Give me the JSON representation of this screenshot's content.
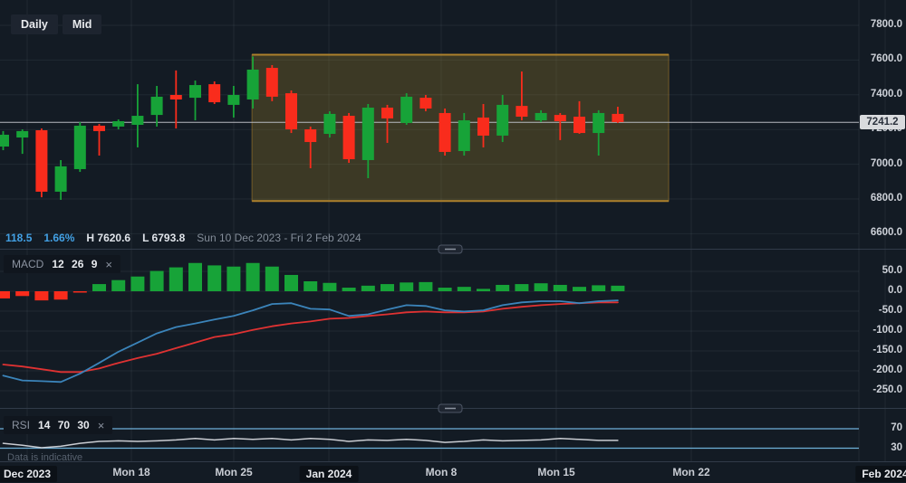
{
  "toolbar": {
    "daily": "Daily",
    "mid": "Mid"
  },
  "price_info": {
    "change": "118.5",
    "change_pct": "1.66%",
    "high": "H 7620.6",
    "low": "L 6793.8",
    "date_range": "Sun 10 Dec 2023 - Fri 2 Feb 2024"
  },
  "macd_box": {
    "title": "MACD",
    "params": "12 26 9",
    "close": "×"
  },
  "rsi_box": {
    "title": "RSI",
    "params": "14 70 30",
    "close": "×"
  },
  "note": "Data is indicative",
  "price_tag": "7241.2",
  "colors": {
    "background": "#131b24",
    "grid": "rgba(170,185,200,0.09)",
    "up": "#17a338",
    "down": "#f92c1c",
    "macd_line": "#3b84ba",
    "signal_line": "#df3232",
    "rsi_line": "#c9ccd2",
    "rsi_band": "#6fb1d9",
    "box_border": "#ad812c",
    "box_fill": "rgba(176,142,44,0.26)",
    "current_price_line": "#b7bac0",
    "accent_blue": "#42a0e4"
  },
  "x_axis": {
    "labels": [
      {
        "text": "Dec 2023",
        "month": true
      },
      {
        "text": "Mon 18",
        "month": false
      },
      {
        "text": "Mon 25",
        "month": false
      },
      {
        "text": "Jan 2024",
        "month": true
      },
      {
        "text": "Mon 8",
        "month": false
      },
      {
        "text": "Mon 15",
        "month": false
      },
      {
        "text": "Mon 22",
        "month": false
      },
      {
        "text": "Feb 2024",
        "month": true
      }
    ]
  },
  "chart_data": {
    "type": "candlestick",
    "title": "Daily price chart with MACD(12,26,9) and RSI(14,70,30)",
    "price_axis": {
      "ticks": [
        7800,
        7600,
        7400,
        7200,
        7000,
        6800,
        6600
      ],
      "current_price": 7241.2,
      "period_high": 7620.6,
      "period_low": 6793.8
    },
    "candles": [
      [
        7102,
        7191,
        7081,
        7170
      ],
      [
        7154,
        7201,
        7060,
        7191
      ],
      [
        7196,
        7206,
        6810,
        6842
      ],
      [
        6842,
        7024,
        6795,
        6988
      ],
      [
        6972,
        7243,
        6956,
        7222
      ],
      [
        7222,
        7232,
        7050,
        7191
      ],
      [
        7217,
        7258,
        7201,
        7248
      ],
      [
        7227,
        7461,
        7097,
        7279
      ],
      [
        7284,
        7451,
        7217,
        7389
      ],
      [
        7399,
        7540,
        7206,
        7373
      ],
      [
        7383,
        7482,
        7253,
        7456
      ],
      [
        7461,
        7477,
        7347,
        7357
      ],
      [
        7342,
        7451,
        7269,
        7399
      ],
      [
        7373,
        7620.6,
        7321,
        7545
      ],
      [
        7555,
        7571,
        7363,
        7389
      ],
      [
        7409,
        7425,
        7180,
        7201
      ],
      [
        7201,
        7217,
        6977,
        7128
      ],
      [
        7175,
        7305,
        7154,
        7290
      ],
      [
        7279,
        7295,
        7008,
        7029
      ],
      [
        7024,
        7347,
        6920,
        7326
      ],
      [
        7326,
        7342,
        7123,
        7264
      ],
      [
        7238,
        7409,
        7227,
        7389
      ],
      [
        7383,
        7399,
        7305,
        7321
      ],
      [
        7295,
        7321,
        7050,
        7071
      ],
      [
        7076,
        7295,
        7050,
        7253
      ],
      [
        7269,
        7347,
        7097,
        7165
      ],
      [
        7165,
        7399,
        7128,
        7342
      ],
      [
        7336,
        7534,
        7253,
        7274
      ],
      [
        7253,
        7311,
        7243,
        7295
      ],
      [
        7284,
        7295,
        7139,
        7248
      ],
      [
        7274,
        7363,
        7175,
        7180
      ],
      [
        7180,
        7311,
        7050,
        7295
      ],
      [
        7290,
        7331,
        7238,
        7243
      ]
    ],
    "range_box": {
      "price_high": 7620.6,
      "price_low": 6793.8,
      "start_index": 13,
      "end_index": 34.65
    },
    "indicators": {
      "macd": {
        "label": "MACD",
        "params": [
          12,
          26,
          9
        ],
        "axis_ticks": [
          50,
          0,
          -50,
          -100,
          -150,
          -200,
          -250
        ],
        "histogram": [
          -18,
          -12,
          -23,
          -21,
          -2,
          18,
          28,
          37,
          51,
          60,
          71,
          65,
          62,
          71,
          62,
          41,
          25,
          21,
          9,
          14,
          18,
          22,
          23,
          9,
          11,
          6,
          16,
          18,
          20,
          16,
          11,
          15,
          14
        ],
        "macd_line": [
          -212,
          -224,
          -226,
          -228,
          -207,
          -180,
          -152,
          -129,
          -106,
          -90,
          -81,
          -71,
          -62,
          -48,
          -32,
          -30,
          -44,
          -46,
          -62,
          -58,
          -46,
          -35,
          -37,
          -48,
          -51,
          -48,
          -35,
          -28,
          -25,
          -25,
          -30,
          -25,
          -23
        ],
        "signal_line": [
          -184,
          -189,
          -196,
          -203,
          -203,
          -194,
          -180,
          -168,
          -157,
          -143,
          -129,
          -115,
          -108,
          -97,
          -88,
          -81,
          -76,
          -69,
          -67,
          -62,
          -58,
          -53,
          -51,
          -53,
          -53,
          -51,
          -44,
          -39,
          -35,
          -32,
          -30,
          -28,
          -28
        ]
      },
      "rsi": {
        "label": "RSI",
        "params": [
          14,
          70,
          30
        ],
        "axis_ticks": [
          70,
          30
        ],
        "overbought": 70,
        "oversold": 30,
        "values": [
          40,
          36,
          31,
          34,
          40,
          44,
          45,
          44,
          45,
          47,
          50,
          47,
          50,
          48,
          50,
          47,
          50,
          48,
          44,
          47,
          46,
          48,
          46,
          42,
          44,
          47,
          45,
          46,
          47,
          50,
          48,
          46,
          46
        ]
      }
    }
  }
}
